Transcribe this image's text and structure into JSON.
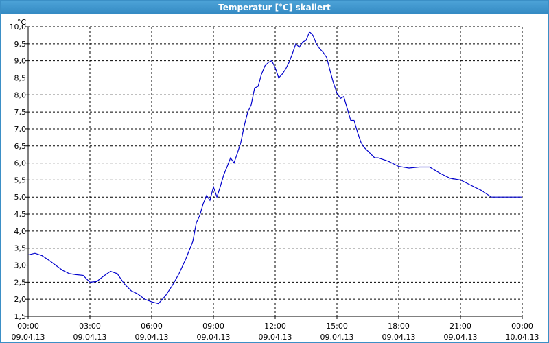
{
  "window": {
    "title": "Temperatur [°C] skaliert"
  },
  "chart_data": {
    "type": "line",
    "title": "Temperatur [°C] skaliert",
    "ylabel": "°C",
    "xlabel": "",
    "ylim": [
      1.5,
      10.0
    ],
    "xlim": [
      0,
      24
    ],
    "grid": true,
    "y_ticks": [
      "1,5",
      "2,0",
      "2,5",
      "3,0",
      "3,5",
      "4,0",
      "4,5",
      "5,0",
      "5,5",
      "6,0",
      "6,5",
      "7,0",
      "7,5",
      "8,0",
      "8,5",
      "9,0",
      "9,5",
      "10,0"
    ],
    "x_ticks": [
      {
        "time": "00:00",
        "date": "09.04.13"
      },
      {
        "time": "03:00",
        "date": "09.04.13"
      },
      {
        "time": "06:00",
        "date": "09.04.13"
      },
      {
        "time": "09:00",
        "date": "09.04.13"
      },
      {
        "time": "12:00",
        "date": "09.04.13"
      },
      {
        "time": "15:00",
        "date": "09.04.13"
      },
      {
        "time": "18:00",
        "date": "09.04.13"
      },
      {
        "time": "21:00",
        "date": "09.04.13"
      },
      {
        "time": "00:00",
        "date": "10.04.13"
      }
    ],
    "series": [
      {
        "color": "#0000cc",
        "x": [
          0,
          0.33,
          0.67,
          1.0,
          1.33,
          1.67,
          2.0,
          2.33,
          2.67,
          3.0,
          3.33,
          3.67,
          4.0,
          4.33,
          4.67,
          5.0,
          5.33,
          5.67,
          6.0,
          6.33,
          6.67,
          7.0,
          7.33,
          7.67,
          8.0,
          8.17,
          8.33,
          8.5,
          8.67,
          8.83,
          9.0,
          9.17,
          9.33,
          9.5,
          9.67,
          9.83,
          10.0,
          10.17,
          10.33,
          10.5,
          10.67,
          10.83,
          11.0,
          11.17,
          11.33,
          11.5,
          11.67,
          11.83,
          12.0,
          12.17,
          12.33,
          12.5,
          12.67,
          12.83,
          13.0,
          13.17,
          13.33,
          13.5,
          13.67,
          13.83,
          14.0,
          14.17,
          14.33,
          14.5,
          14.67,
          14.83,
          15.0,
          15.17,
          15.33,
          15.5,
          15.67,
          15.83,
          16.0,
          16.17,
          16.33,
          16.5,
          16.67,
          16.83,
          17.0,
          17.5,
          18.0,
          18.5,
          19.0,
          19.5,
          20.0,
          20.5,
          21.0,
          21.5,
          22.0,
          22.5,
          23.0,
          23.5,
          24.0
        ],
        "y": [
          3.3,
          3.35,
          3.28,
          3.15,
          3.0,
          2.85,
          2.75,
          2.72,
          2.7,
          2.5,
          2.52,
          2.68,
          2.82,
          2.75,
          2.45,
          2.25,
          2.15,
          2.0,
          1.92,
          1.87,
          2.1,
          2.4,
          2.75,
          3.2,
          3.7,
          4.25,
          4.45,
          4.8,
          5.05,
          4.9,
          5.3,
          5.0,
          5.3,
          5.65,
          5.9,
          6.15,
          6.0,
          6.3,
          6.6,
          7.1,
          7.5,
          7.7,
          8.2,
          8.25,
          8.6,
          8.85,
          8.95,
          9.0,
          8.8,
          8.5,
          8.6,
          8.75,
          8.95,
          9.2,
          9.5,
          9.4,
          9.55,
          9.6,
          9.85,
          9.75,
          9.5,
          9.35,
          9.25,
          9.1,
          8.7,
          8.35,
          8.05,
          7.9,
          7.95,
          7.6,
          7.25,
          7.25,
          6.9,
          6.6,
          6.45,
          6.35,
          6.25,
          6.15,
          6.15,
          6.05,
          5.9,
          5.85,
          5.88,
          5.88,
          5.7,
          5.55,
          5.5,
          5.35,
          5.2,
          5.0,
          5.0,
          5.0,
          5.0
        ]
      }
    ]
  }
}
